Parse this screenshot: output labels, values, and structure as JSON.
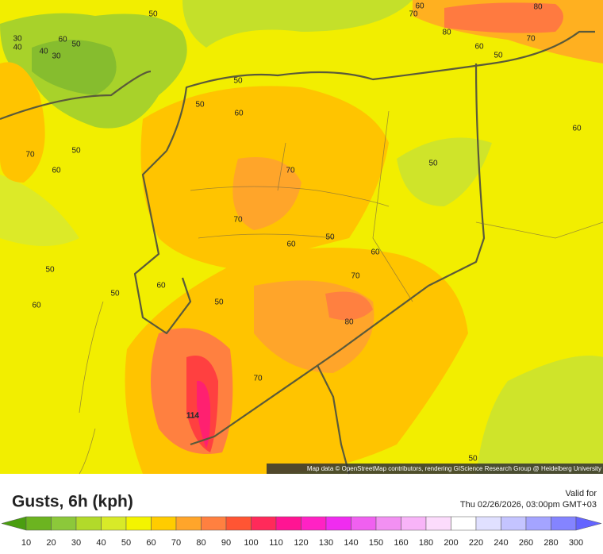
{
  "map": {
    "contour_labels": [
      60,
      70,
      80,
      80,
      70,
      60,
      50,
      50,
      30,
      40,
      60,
      50,
      40,
      30,
      50,
      50,
      60,
      60,
      50,
      70,
      60,
      50,
      70,
      70,
      50,
      60,
      60,
      50,
      70,
      60,
      50,
      50,
      60,
      80,
      70,
      114,
      50
    ],
    "attribution": "Map data © OpenStreetMap contributors, rendering GIScience Research Group @ Heidelberg University"
  },
  "footer": {
    "title": "Gusts, 6h (kph)",
    "valid_for": "Valid for",
    "valid_time": "Thu 02/26/2026, 03:00pm GMT+03"
  },
  "legend": {
    "labels": [
      10,
      20,
      30,
      40,
      50,
      60,
      70,
      80,
      90,
      100,
      110,
      120,
      130,
      140,
      150,
      160,
      180,
      200,
      220,
      240,
      260,
      280,
      300
    ],
    "colors": [
      "#4a9e10",
      "#6cb420",
      "#8cc83a",
      "#b2da2a",
      "#d8ea28",
      "#f4f400",
      "#ffcc00",
      "#ffa52a",
      "#ff8040",
      "#ff5533",
      "#ff2a5a",
      "#ff1493",
      "#ff22c4",
      "#f02cf0",
      "#f060f0",
      "#f290f2",
      "#f8b4f8",
      "#fcdcfc",
      "#ffffff",
      "#e0e0ff",
      "#c4c4ff",
      "#a4a4ff",
      "#8484ff",
      "#6464ff"
    ]
  }
}
